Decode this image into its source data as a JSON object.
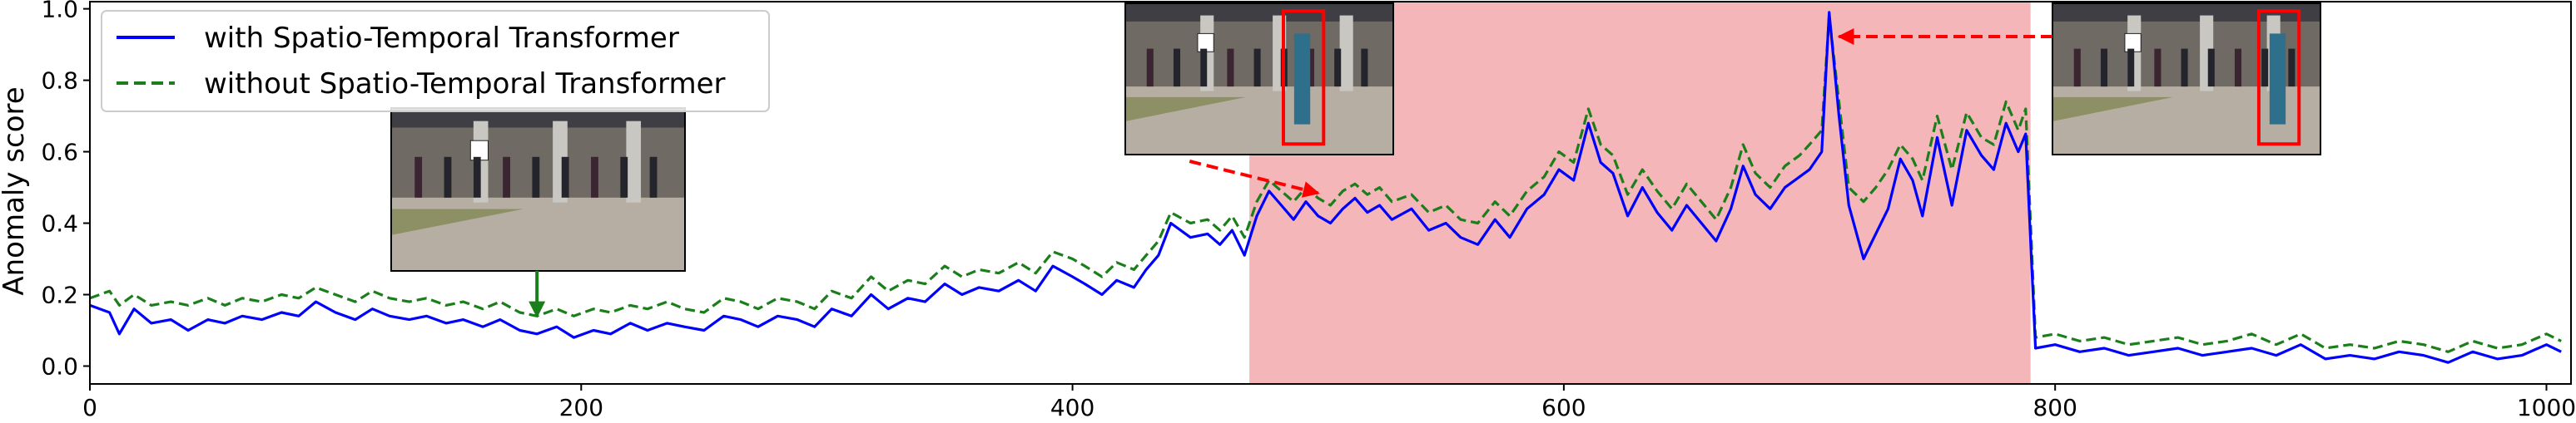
{
  "chart_data": {
    "type": "line",
    "ylabel": "Anomaly score",
    "xlim": [
      0,
      1010
    ],
    "ylim": [
      -0.05,
      1.02
    ],
    "xticks": [
      0,
      200,
      400,
      600,
      800,
      1000
    ],
    "yticks": [
      0.0,
      0.2,
      0.4,
      0.6,
      0.8,
      1.0
    ],
    "xtick_labels": [
      "0",
      "200",
      "400",
      "600",
      "800",
      "1000"
    ],
    "ytick_labels": [
      "0.0",
      "0.2",
      "0.4",
      "0.6",
      "0.8",
      "1.0"
    ],
    "grid": false,
    "legend_position": "top-left",
    "anomaly_region": {
      "x_start": 472,
      "x_end": 790,
      "color": "#f4b6b8"
    },
    "series": [
      {
        "name": "with Spatio-Temporal Transformer",
        "color": "#0000ff",
        "style": "solid",
        "points": [
          [
            0,
            0.17
          ],
          [
            8,
            0.15
          ],
          [
            12,
            0.09
          ],
          [
            18,
            0.16
          ],
          [
            25,
            0.12
          ],
          [
            33,
            0.13
          ],
          [
            40,
            0.1
          ],
          [
            48,
            0.13
          ],
          [
            55,
            0.12
          ],
          [
            62,
            0.14
          ],
          [
            70,
            0.13
          ],
          [
            78,
            0.15
          ],
          [
            85,
            0.14
          ],
          [
            92,
            0.18
          ],
          [
            100,
            0.15
          ],
          [
            108,
            0.13
          ],
          [
            115,
            0.16
          ],
          [
            122,
            0.14
          ],
          [
            130,
            0.13
          ],
          [
            137,
            0.14
          ],
          [
            145,
            0.12
          ],
          [
            152,
            0.13
          ],
          [
            160,
            0.11
          ],
          [
            167,
            0.13
          ],
          [
            175,
            0.1
          ],
          [
            182,
            0.09
          ],
          [
            190,
            0.11
          ],
          [
            197,
            0.08
          ],
          [
            205,
            0.1
          ],
          [
            212,
            0.09
          ],
          [
            220,
            0.12
          ],
          [
            227,
            0.1
          ],
          [
            235,
            0.12
          ],
          [
            242,
            0.11
          ],
          [
            250,
            0.1
          ],
          [
            258,
            0.14
          ],
          [
            265,
            0.13
          ],
          [
            272,
            0.11
          ],
          [
            280,
            0.14
          ],
          [
            288,
            0.13
          ],
          [
            295,
            0.11
          ],
          [
            302,
            0.16
          ],
          [
            310,
            0.14
          ],
          [
            318,
            0.2
          ],
          [
            325,
            0.16
          ],
          [
            333,
            0.19
          ],
          [
            340,
            0.18
          ],
          [
            348,
            0.23
          ],
          [
            355,
            0.2
          ],
          [
            362,
            0.22
          ],
          [
            370,
            0.21
          ],
          [
            378,
            0.24
          ],
          [
            385,
            0.21
          ],
          [
            392,
            0.28
          ],
          [
            400,
            0.25
          ],
          [
            405,
            0.23
          ],
          [
            412,
            0.2
          ],
          [
            418,
            0.24
          ],
          [
            425,
            0.22
          ],
          [
            430,
            0.27
          ],
          [
            435,
            0.31
          ],
          [
            440,
            0.4
          ],
          [
            448,
            0.36
          ],
          [
            455,
            0.37
          ],
          [
            460,
            0.34
          ],
          [
            465,
            0.38
          ],
          [
            470,
            0.31
          ],
          [
            475,
            0.42
          ],
          [
            480,
            0.49
          ],
          [
            485,
            0.45
          ],
          [
            490,
            0.41
          ],
          [
            495,
            0.46
          ],
          [
            500,
            0.42
          ],
          [
            505,
            0.4
          ],
          [
            510,
            0.44
          ],
          [
            515,
            0.47
          ],
          [
            520,
            0.43
          ],
          [
            525,
            0.45
          ],
          [
            530,
            0.41
          ],
          [
            538,
            0.44
          ],
          [
            545,
            0.38
          ],
          [
            552,
            0.4
          ],
          [
            558,
            0.36
          ],
          [
            565,
            0.34
          ],
          [
            572,
            0.41
          ],
          [
            578,
            0.36
          ],
          [
            585,
            0.44
          ],
          [
            592,
            0.48
          ],
          [
            598,
            0.55
          ],
          [
            604,
            0.52
          ],
          [
            610,
            0.68
          ],
          [
            615,
            0.57
          ],
          [
            620,
            0.54
          ],
          [
            626,
            0.42
          ],
          [
            632,
            0.5
          ],
          [
            638,
            0.43
          ],
          [
            644,
            0.38
          ],
          [
            650,
            0.45
          ],
          [
            656,
            0.4
          ],
          [
            662,
            0.35
          ],
          [
            668,
            0.44
          ],
          [
            673,
            0.56
          ],
          [
            678,
            0.48
          ],
          [
            684,
            0.44
          ],
          [
            690,
            0.5
          ],
          [
            696,
            0.53
          ],
          [
            700,
            0.55
          ],
          [
            705,
            0.6
          ],
          [
            708,
            0.99
          ],
          [
            712,
            0.7
          ],
          [
            716,
            0.45
          ],
          [
            722,
            0.3
          ],
          [
            727,
            0.37
          ],
          [
            732,
            0.44
          ],
          [
            737,
            0.58
          ],
          [
            742,
            0.52
          ],
          [
            746,
            0.42
          ],
          [
            752,
            0.64
          ],
          [
            758,
            0.45
          ],
          [
            764,
            0.66
          ],
          [
            770,
            0.59
          ],
          [
            775,
            0.55
          ],
          [
            780,
            0.68
          ],
          [
            785,
            0.6
          ],
          [
            788,
            0.65
          ],
          [
            792,
            0.05
          ],
          [
            800,
            0.06
          ],
          [
            810,
            0.04
          ],
          [
            820,
            0.05
          ],
          [
            830,
            0.03
          ],
          [
            840,
            0.04
          ],
          [
            850,
            0.05
          ],
          [
            860,
            0.03
          ],
          [
            870,
            0.04
          ],
          [
            880,
            0.05
          ],
          [
            890,
            0.03
          ],
          [
            900,
            0.06
          ],
          [
            910,
            0.02
          ],
          [
            920,
            0.03
          ],
          [
            930,
            0.02
          ],
          [
            940,
            0.04
          ],
          [
            950,
            0.03
          ],
          [
            960,
            0.01
          ],
          [
            970,
            0.04
          ],
          [
            980,
            0.02
          ],
          [
            990,
            0.03
          ],
          [
            1000,
            0.06
          ],
          [
            1006,
            0.04
          ]
        ]
      },
      {
        "name": "without Spatio-Temporal Transformer",
        "color": "#1a7f1a",
        "style": "dashed",
        "points": [
          [
            0,
            0.19
          ],
          [
            8,
            0.21
          ],
          [
            12,
            0.17
          ],
          [
            18,
            0.2
          ],
          [
            25,
            0.17
          ],
          [
            33,
            0.18
          ],
          [
            40,
            0.17
          ],
          [
            48,
            0.19
          ],
          [
            55,
            0.17
          ],
          [
            62,
            0.19
          ],
          [
            70,
            0.18
          ],
          [
            78,
            0.2
          ],
          [
            85,
            0.19
          ],
          [
            92,
            0.22
          ],
          [
            100,
            0.2
          ],
          [
            108,
            0.18
          ],
          [
            115,
            0.21
          ],
          [
            122,
            0.19
          ],
          [
            130,
            0.18
          ],
          [
            137,
            0.19
          ],
          [
            145,
            0.17
          ],
          [
            152,
            0.18
          ],
          [
            160,
            0.16
          ],
          [
            167,
            0.18
          ],
          [
            175,
            0.15
          ],
          [
            182,
            0.14
          ],
          [
            190,
            0.16
          ],
          [
            197,
            0.14
          ],
          [
            205,
            0.16
          ],
          [
            212,
            0.15
          ],
          [
            220,
            0.17
          ],
          [
            227,
            0.16
          ],
          [
            235,
            0.18
          ],
          [
            242,
            0.16
          ],
          [
            250,
            0.15
          ],
          [
            258,
            0.19
          ],
          [
            265,
            0.18
          ],
          [
            272,
            0.16
          ],
          [
            280,
            0.19
          ],
          [
            288,
            0.18
          ],
          [
            295,
            0.16
          ],
          [
            302,
            0.21
          ],
          [
            310,
            0.19
          ],
          [
            318,
            0.25
          ],
          [
            325,
            0.21
          ],
          [
            333,
            0.24
          ],
          [
            340,
            0.23
          ],
          [
            348,
            0.28
          ],
          [
            355,
            0.25
          ],
          [
            362,
            0.27
          ],
          [
            370,
            0.26
          ],
          [
            378,
            0.29
          ],
          [
            385,
            0.26
          ],
          [
            392,
            0.32
          ],
          [
            400,
            0.3
          ],
          [
            405,
            0.28
          ],
          [
            412,
            0.25
          ],
          [
            418,
            0.29
          ],
          [
            425,
            0.27
          ],
          [
            430,
            0.31
          ],
          [
            435,
            0.35
          ],
          [
            440,
            0.43
          ],
          [
            448,
            0.4
          ],
          [
            455,
            0.41
          ],
          [
            460,
            0.38
          ],
          [
            465,
            0.42
          ],
          [
            470,
            0.36
          ],
          [
            475,
            0.46
          ],
          [
            480,
            0.52
          ],
          [
            485,
            0.49
          ],
          [
            490,
            0.46
          ],
          [
            495,
            0.5
          ],
          [
            500,
            0.47
          ],
          [
            505,
            0.45
          ],
          [
            510,
            0.49
          ],
          [
            515,
            0.51
          ],
          [
            520,
            0.48
          ],
          [
            525,
            0.5
          ],
          [
            530,
            0.46
          ],
          [
            538,
            0.48
          ],
          [
            545,
            0.43
          ],
          [
            552,
            0.45
          ],
          [
            558,
            0.41
          ],
          [
            565,
            0.4
          ],
          [
            572,
            0.46
          ],
          [
            578,
            0.42
          ],
          [
            585,
            0.49
          ],
          [
            592,
            0.53
          ],
          [
            598,
            0.6
          ],
          [
            604,
            0.57
          ],
          [
            610,
            0.72
          ],
          [
            615,
            0.62
          ],
          [
            620,
            0.59
          ],
          [
            626,
            0.48
          ],
          [
            632,
            0.55
          ],
          [
            638,
            0.49
          ],
          [
            644,
            0.44
          ],
          [
            650,
            0.51
          ],
          [
            656,
            0.46
          ],
          [
            662,
            0.41
          ],
          [
            668,
            0.5
          ],
          [
            673,
            0.62
          ],
          [
            678,
            0.54
          ],
          [
            684,
            0.5
          ],
          [
            690,
            0.56
          ],
          [
            696,
            0.59
          ],
          [
            700,
            0.62
          ],
          [
            705,
            0.66
          ],
          [
            708,
            0.98
          ],
          [
            712,
            0.74
          ],
          [
            716,
            0.5
          ],
          [
            722,
            0.46
          ],
          [
            727,
            0.5
          ],
          [
            732,
            0.55
          ],
          [
            737,
            0.62
          ],
          [
            742,
            0.58
          ],
          [
            746,
            0.52
          ],
          [
            752,
            0.7
          ],
          [
            758,
            0.55
          ],
          [
            764,
            0.71
          ],
          [
            770,
            0.64
          ],
          [
            775,
            0.62
          ],
          [
            780,
            0.74
          ],
          [
            785,
            0.66
          ],
          [
            788,
            0.72
          ],
          [
            792,
            0.08
          ],
          [
            800,
            0.09
          ],
          [
            810,
            0.07
          ],
          [
            820,
            0.08
          ],
          [
            830,
            0.06
          ],
          [
            840,
            0.07
          ],
          [
            850,
            0.08
          ],
          [
            860,
            0.06
          ],
          [
            870,
            0.07
          ],
          [
            880,
            0.09
          ],
          [
            890,
            0.06
          ],
          [
            900,
            0.09
          ],
          [
            910,
            0.05
          ],
          [
            920,
            0.06
          ],
          [
            930,
            0.05
          ],
          [
            940,
            0.07
          ],
          [
            950,
            0.06
          ],
          [
            960,
            0.04
          ],
          [
            970,
            0.07
          ],
          [
            980,
            0.05
          ],
          [
            990,
            0.06
          ],
          [
            1000,
            0.09
          ],
          [
            1006,
            0.07
          ]
        ]
      }
    ],
    "frames": [
      {
        "id": "frame-normal",
        "anchor_x": 182,
        "anchor_y": 0.13,
        "box": false
      },
      {
        "id": "frame-person-walking",
        "anchor_x": 500,
        "anchor_y": 0.47,
        "box": true
      },
      {
        "id": "frame-person-running",
        "anchor_x": 712,
        "anchor_y": 0.95,
        "box": true
      }
    ]
  }
}
